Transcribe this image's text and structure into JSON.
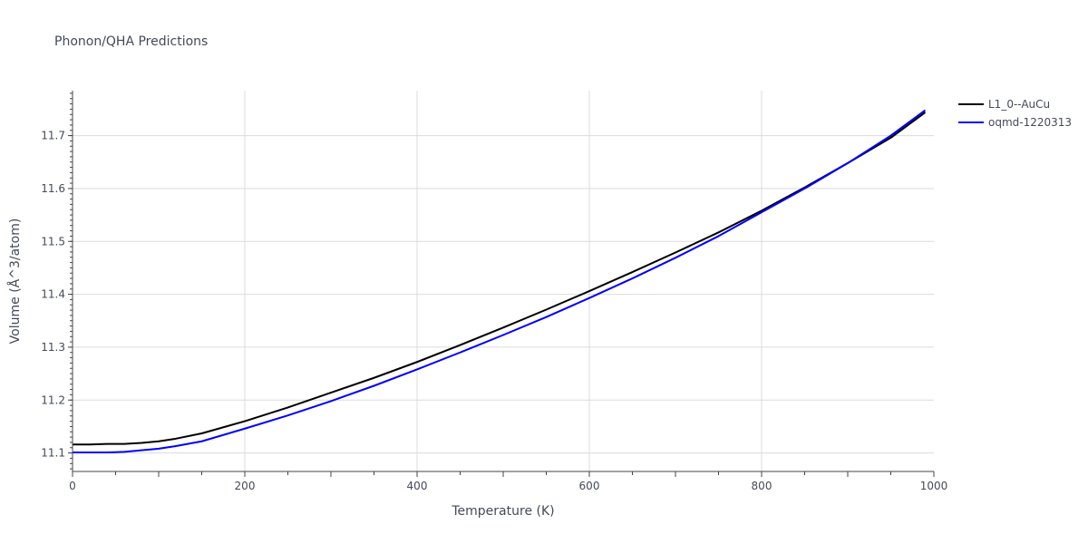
{
  "chart_data": {
    "type": "line",
    "title": "Phonon/QHA Predictions",
    "xlabel": "Temperature (K)",
    "ylabel": "Volume (Å^3/atom)",
    "xlim": [
      0,
      1000
    ],
    "ylim": [
      11.065,
      11.785
    ],
    "x_ticks": [
      "0",
      "200",
      "400",
      "600",
      "800",
      "1000"
    ],
    "y_ticks": [
      "11.1",
      "11.2",
      "11.3",
      "11.4",
      "11.5",
      "11.6",
      "11.7"
    ],
    "grid": true,
    "legend_position": "top-right",
    "series": [
      {
        "name": "L1_0--AuCu",
        "color": "#000000",
        "x": [
          0,
          20,
          40,
          60,
          80,
          100,
          120,
          150,
          200,
          250,
          300,
          350,
          400,
          450,
          500,
          550,
          600,
          650,
          700,
          750,
          800,
          850,
          900,
          950,
          990
        ],
        "y": [
          11.116,
          11.116,
          11.117,
          11.117,
          11.119,
          11.122,
          11.127,
          11.137,
          11.16,
          11.186,
          11.214,
          11.242,
          11.272,
          11.304,
          11.337,
          11.371,
          11.406,
          11.442,
          11.479,
          11.517,
          11.558,
          11.602,
          11.648,
          11.696,
          11.744
        ]
      },
      {
        "name": "oqmd-1220313",
        "color": "#0000ff",
        "x": [
          0,
          20,
          40,
          60,
          80,
          100,
          120,
          150,
          200,
          250,
          300,
          350,
          400,
          450,
          500,
          550,
          600,
          650,
          700,
          750,
          800,
          850,
          900,
          950,
          990
        ],
        "y": [
          11.101,
          11.101,
          11.101,
          11.102,
          11.105,
          11.108,
          11.113,
          11.122,
          11.146,
          11.171,
          11.198,
          11.227,
          11.258,
          11.29,
          11.323,
          11.357,
          11.393,
          11.43,
          11.469,
          11.51,
          11.555,
          11.6,
          11.648,
          11.7,
          11.748
        ]
      }
    ]
  }
}
